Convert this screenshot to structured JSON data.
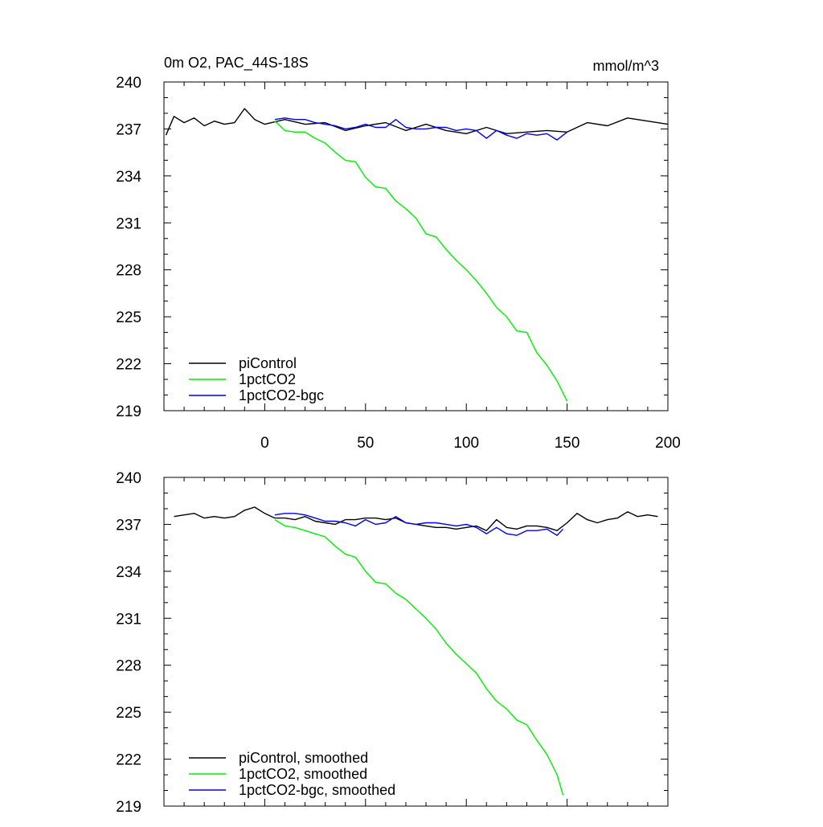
{
  "figure": {
    "title_left": "0m O2, PAC_44S-18S",
    "title_right": "mmol/m^3"
  },
  "colors": {
    "piControl": "#000000",
    "1pctCO2": "#00ee00",
    "1pctCO2-bgc": "#0000ee"
  },
  "chart_data": [
    {
      "type": "line",
      "title": "0m O2, PAC_44S-18S",
      "units": "mmol/m^3",
      "xlim": [
        -50,
        200
      ],
      "ylim": [
        219,
        240
      ],
      "x_tick_labels": [
        "0",
        "50",
        "100",
        "150",
        "200"
      ],
      "x_tick_values": [
        0,
        50,
        100,
        150,
        200
      ],
      "y_tick_labels": [
        "219",
        "222",
        "225",
        "228",
        "231",
        "234",
        "237",
        "240"
      ],
      "y_tick_values": [
        219,
        222,
        225,
        228,
        231,
        234,
        237,
        240
      ],
      "grid": false,
      "legend_position": "bottom-left",
      "series": [
        {
          "name": "piControl",
          "color": "#000000",
          "x": [
            -49,
            -45,
            -40,
            -35,
            -30,
            -25,
            -20,
            -15,
            -10,
            -5,
            0,
            10,
            20,
            30,
            40,
            50,
            60,
            70,
            80,
            90,
            100,
            110,
            120,
            130,
            140,
            150,
            160,
            170,
            180,
            190,
            200
          ],
          "y": [
            236.6,
            237.8,
            237.4,
            237.7,
            237.2,
            237.5,
            237.3,
            237.4,
            238.3,
            237.6,
            237.3,
            237.6,
            237.3,
            237.4,
            236.9,
            237.2,
            237.4,
            236.9,
            237.3,
            236.9,
            236.7,
            237.1,
            236.7,
            236.8,
            236.9,
            236.8,
            237.4,
            237.2,
            237.7,
            237.5,
            237.3
          ]
        },
        {
          "name": "1pctCO2",
          "color": "#00ee00",
          "x": [
            5,
            10,
            15,
            20,
            25,
            30,
            35,
            40,
            45,
            50,
            55,
            60,
            65,
            70,
            75,
            80,
            85,
            90,
            95,
            100,
            105,
            110,
            115,
            120,
            125,
            130,
            135,
            140,
            145,
            150
          ],
          "y": [
            237.5,
            236.9,
            236.8,
            236.8,
            236.4,
            236.1,
            235.5,
            235.0,
            234.9,
            233.9,
            233.3,
            233.2,
            232.4,
            231.9,
            231.3,
            230.3,
            230.1,
            229.3,
            228.6,
            228.0,
            227.3,
            226.5,
            225.6,
            225.0,
            224.1,
            224.0,
            222.7,
            221.9,
            220.9,
            219.6
          ]
        },
        {
          "name": "1pctCO2-bgc",
          "color": "#0000ee",
          "x": [
            5,
            10,
            15,
            20,
            25,
            30,
            35,
            40,
            45,
            50,
            55,
            60,
            65,
            70,
            75,
            80,
            85,
            90,
            95,
            100,
            105,
            110,
            115,
            120,
            125,
            130,
            135,
            140,
            145,
            150
          ],
          "y": [
            237.6,
            237.7,
            237.6,
            237.6,
            237.4,
            237.3,
            237.2,
            237.0,
            237.1,
            237.3,
            237.1,
            237.1,
            237.6,
            237.1,
            237.0,
            237.0,
            237.1,
            237.1,
            236.9,
            237.0,
            236.9,
            236.4,
            236.9,
            236.6,
            236.4,
            236.7,
            236.6,
            236.7,
            236.3,
            236.8
          ]
        }
      ],
      "legend": [
        "piControl",
        "1pctCO2",
        "1pctCO2-bgc"
      ]
    },
    {
      "type": "line",
      "xlim": [
        -50,
        200
      ],
      "ylim": [
        219,
        240
      ],
      "x_tick_labels": [],
      "y_tick_labels": [
        "219",
        "222",
        "225",
        "228",
        "231",
        "234",
        "237",
        "240"
      ],
      "y_tick_values": [
        219,
        222,
        225,
        228,
        231,
        234,
        237,
        240
      ],
      "grid": false,
      "legend_position": "bottom-left",
      "series": [
        {
          "name": "piControl, smoothed",
          "color": "#000000",
          "x": [
            -45,
            -40,
            -35,
            -30,
            -25,
            -20,
            -15,
            -10,
            -5,
            0,
            5,
            10,
            15,
            20,
            25,
            30,
            35,
            40,
            45,
            50,
            55,
            60,
            65,
            70,
            75,
            80,
            85,
            90,
            95,
            100,
            105,
            110,
            115,
            120,
            125,
            130,
            135,
            140,
            145,
            150,
            155,
            160,
            165,
            170,
            175,
            180,
            185,
            190,
            195
          ],
          "y": [
            237.5,
            237.6,
            237.7,
            237.4,
            237.5,
            237.4,
            237.5,
            237.9,
            238.1,
            237.7,
            237.4,
            237.4,
            237.3,
            237.5,
            237.2,
            237.1,
            237.0,
            237.3,
            237.3,
            237.4,
            237.4,
            237.3,
            237.4,
            237.1,
            237.0,
            236.9,
            236.8,
            236.8,
            236.7,
            236.8,
            236.9,
            236.6,
            237.3,
            236.8,
            236.7,
            236.9,
            236.9,
            236.8,
            236.6,
            237.1,
            237.7,
            237.3,
            237.1,
            237.3,
            237.4,
            237.8,
            237.5,
            237.6,
            237.5
          ]
        },
        {
          "name": "1pctCO2, smoothed",
          "color": "#00ee00",
          "x": [
            5,
            10,
            15,
            20,
            25,
            30,
            35,
            40,
            45,
            50,
            55,
            60,
            65,
            70,
            75,
            80,
            85,
            90,
            95,
            100,
            105,
            110,
            115,
            120,
            125,
            130,
            135,
            140,
            145,
            148
          ],
          "y": [
            237.3,
            236.9,
            236.8,
            236.6,
            236.4,
            236.2,
            235.6,
            235.1,
            234.9,
            234.0,
            233.3,
            233.2,
            232.6,
            232.2,
            231.6,
            231.0,
            230.3,
            229.4,
            228.7,
            228.1,
            227.5,
            226.5,
            225.7,
            225.2,
            224.5,
            224.2,
            223.2,
            222.3,
            221.0,
            219.7
          ]
        },
        {
          "name": "1pctCO2-bgc, smoothed",
          "color": "#0000ee",
          "x": [
            5,
            10,
            15,
            20,
            25,
            30,
            35,
            40,
            45,
            50,
            55,
            60,
            65,
            70,
            75,
            80,
            85,
            90,
            95,
            100,
            105,
            110,
            115,
            120,
            125,
            130,
            135,
            140,
            145,
            148
          ],
          "y": [
            237.6,
            237.7,
            237.7,
            237.6,
            237.4,
            237.2,
            237.2,
            237.1,
            236.9,
            237.3,
            237.0,
            237.1,
            237.5,
            237.1,
            237.0,
            237.1,
            237.1,
            237.0,
            236.9,
            237.0,
            236.8,
            236.4,
            236.8,
            236.4,
            236.3,
            236.6,
            236.6,
            236.7,
            236.3,
            236.7
          ]
        }
      ],
      "legend": [
        "piControl, smoothed",
        "1pctCO2, smoothed",
        "1pctCO2-bgc, smoothed"
      ]
    }
  ]
}
